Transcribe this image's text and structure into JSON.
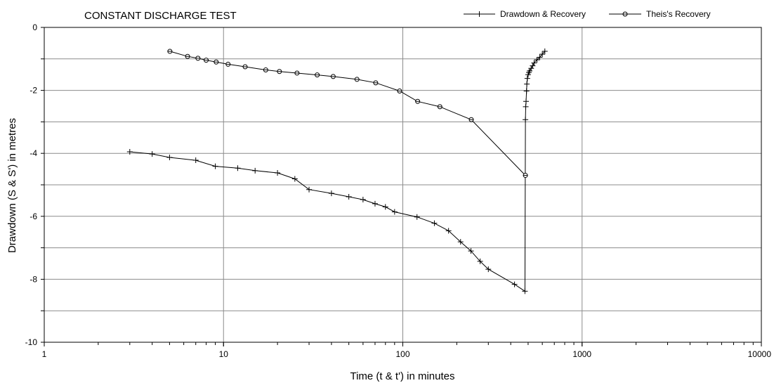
{
  "chart_data": {
    "type": "line",
    "title": "CONSTANT DISCHARGE TEST",
    "xlabel": "Time (t & t') in minutes",
    "ylabel": "Drawdown (S & S') in metres",
    "x_scale": "log",
    "xlim": [
      1,
      10000
    ],
    "ylim": [
      -10,
      0
    ],
    "x_ticks": [
      1,
      10,
      100,
      1000,
      10000
    ],
    "x_tick_labels": [
      "1",
      "10",
      "100",
      "1000",
      "10000"
    ],
    "y_ticks": [
      0,
      -2,
      -4,
      -6,
      -8,
      -10
    ],
    "y_tick_labels": [
      "0",
      "-2",
      "-4",
      "-6",
      "-8",
      "-10"
    ],
    "y_minor_ticks": [
      -1,
      -3,
      -5,
      -7,
      -9
    ],
    "grid": true,
    "legend_position": "top-right",
    "series": [
      {
        "name": "Drawdown & Recovery",
        "marker": "plus",
        "x": [
          3,
          4,
          5,
          7,
          9,
          12,
          15,
          20,
          25,
          30,
          40,
          50,
          60,
          70,
          80,
          90,
          120,
          150,
          180,
          210,
          240,
          270,
          300,
          420,
          480,
          483,
          485,
          487,
          490,
          492,
          495,
          500,
          505,
          510,
          520,
          530,
          540,
          560,
          580,
          600,
          620
        ],
        "y": [
          -3.95,
          -4.02,
          -4.13,
          -4.22,
          -4.41,
          -4.47,
          -4.55,
          -4.62,
          -4.81,
          -5.15,
          -5.27,
          -5.38,
          -5.47,
          -5.6,
          -5.7,
          -5.86,
          -6.02,
          -6.22,
          -6.46,
          -6.81,
          -7.1,
          -7.43,
          -7.68,
          -8.16,
          -8.38,
          -2.93,
          -2.52,
          -2.35,
          -2.02,
          -1.8,
          -1.62,
          -1.5,
          -1.43,
          -1.38,
          -1.3,
          -1.22,
          -1.13,
          -1.03,
          -0.95,
          -0.85,
          -0.76
        ]
      },
      {
        "name": "Theis's Recovery",
        "marker": "circle",
        "x": [
          5.02,
          6.3,
          7.2,
          8,
          9.1,
          10.6,
          13.2,
          17.2,
          20.5,
          25.7,
          33.3,
          40.9,
          55.5,
          70.6,
          96,
          121,
          161,
          241,
          483
        ],
        "y": [
          -0.76,
          -0.92,
          -0.98,
          -1.04,
          -1.1,
          -1.17,
          -1.25,
          -1.35,
          -1.4,
          -1.45,
          -1.51,
          -1.56,
          -1.65,
          -1.76,
          -2.02,
          -2.35,
          -2.52,
          -2.93,
          -4.7
        ]
      }
    ]
  }
}
